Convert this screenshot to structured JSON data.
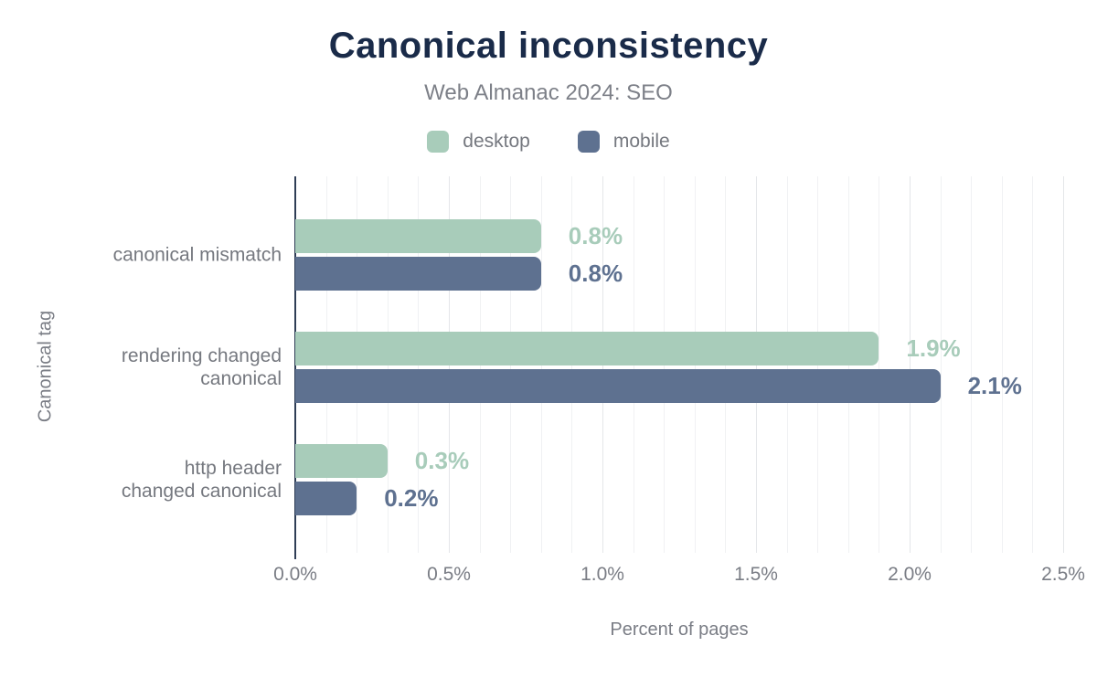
{
  "header": {
    "title": "Canonical inconsistency",
    "subtitle": "Web Almanac 2024: SEO"
  },
  "colors": {
    "title": "#1a2b49",
    "muted_text": "#7a7d85",
    "axis_line": "#2f3e56",
    "grid_minor": "#f0f1f3",
    "grid_major": "#e4e6e9",
    "desktop": "#a8ccba",
    "mobile": "#5e7190"
  },
  "chart_data": {
    "type": "bar",
    "orientation": "horizontal",
    "title": "Canonical inconsistency",
    "subtitle": "Web Almanac 2024: SEO",
    "categories": [
      "canonical mismatch",
      "rendering changed canonical",
      "http header changed canonical"
    ],
    "category_lines": [
      [
        "canonical mismatch"
      ],
      [
        "rendering changed",
        "canonical"
      ],
      [
        "http header",
        "changed canonical"
      ]
    ],
    "series": [
      {
        "name": "desktop",
        "color": "#a8ccba",
        "values": [
          0.8,
          1.9,
          0.3
        ],
        "labels": [
          "0.8%",
          "1.9%",
          "0.3%"
        ]
      },
      {
        "name": "mobile",
        "color": "#5e7190",
        "values": [
          0.8,
          2.1,
          0.2
        ],
        "labels": [
          "0.8%",
          "2.1%",
          "0.2%"
        ]
      }
    ],
    "xlabel": "Percent of pages",
    "ylabel": "Canonical tag",
    "xlim": [
      0,
      2.5
    ],
    "x_ticks": [
      "0.0%",
      "0.5%",
      "1.0%",
      "1.5%",
      "2.0%",
      "2.5%"
    ],
    "grid": {
      "axis": "x",
      "minor_step": 0.1,
      "major_step": 0.5
    },
    "legend_position": "top",
    "data_labels": "outside-end"
  }
}
